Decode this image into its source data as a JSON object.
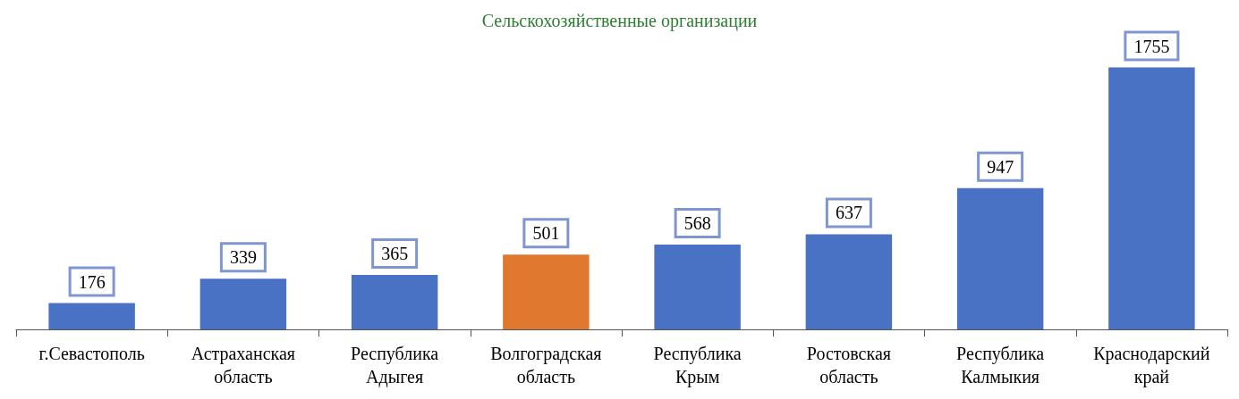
{
  "chart_data": {
    "type": "bar",
    "title": "Сельскохозяйственные организации",
    "categories": [
      "г.Севастополь",
      "Астраханская область",
      "Республика Адыгея",
      "Волгоградская область",
      "Республика Крым",
      "Ростовская область",
      "Республика Калмыкия",
      "Краснодарский край"
    ],
    "values": [
      176,
      339,
      365,
      501,
      568,
      637,
      947,
      1755
    ],
    "colors": [
      "#4a72c4",
      "#4a72c4",
      "#4a72c4",
      "#e0782f",
      "#4a72c4",
      "#4a72c4",
      "#4a72c4",
      "#4a72c4"
    ],
    "data_labels": true
  }
}
